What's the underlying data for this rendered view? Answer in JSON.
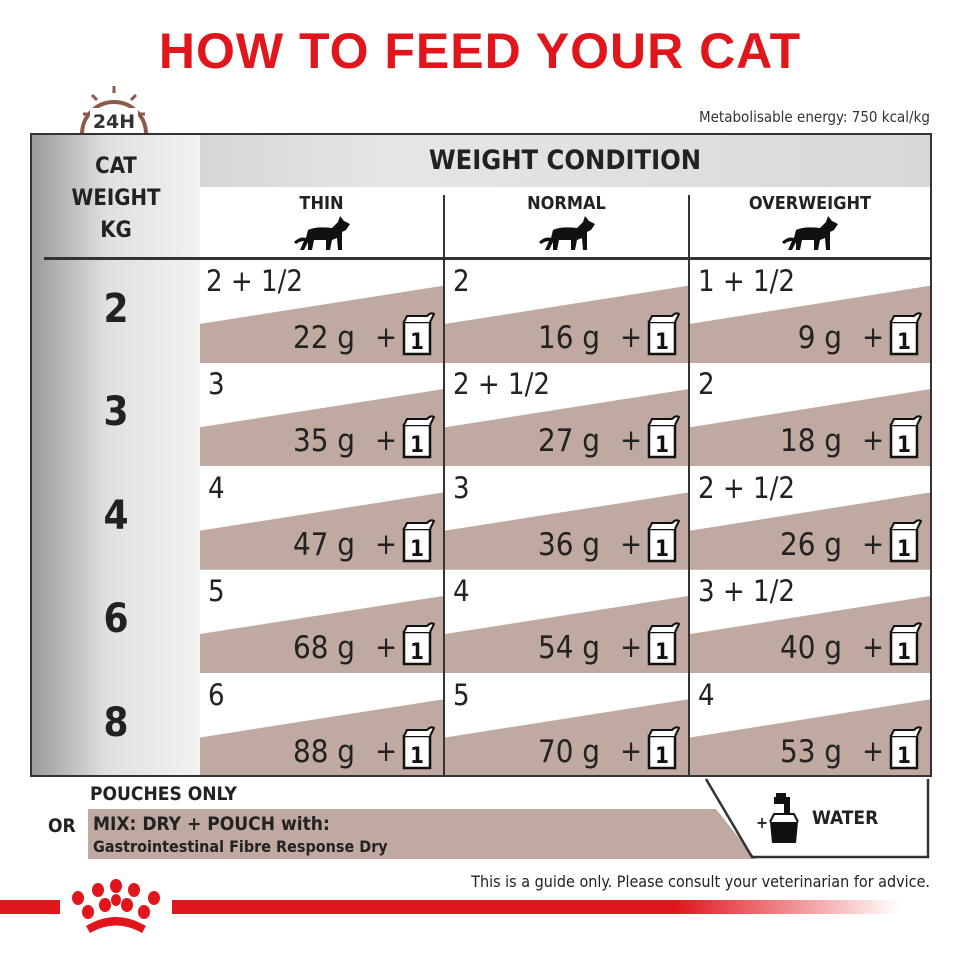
{
  "title": "HOW TO FEED YOUR CAT",
  "clock_label": "24H",
  "energy": "Metabolisable energy: 750 kcal/kg",
  "weight_header": [
    "CAT",
    "WEIGHT",
    "KG"
  ],
  "weight_condition": "WEIGHT CONDITION",
  "columns": [
    {
      "label": "THIN",
      "icon": "cat-thin-icon"
    },
    {
      "label": "NORMAL",
      "icon": "cat-normal-icon"
    },
    {
      "label": "OVERWEIGHT",
      "icon": "cat-overweight-icon"
    }
  ],
  "rows": [
    {
      "weight": "2",
      "cells": [
        {
          "pouches": "2 + 1/2",
          "grams": "22 g"
        },
        {
          "pouches": "2",
          "grams": "16 g"
        },
        {
          "pouches": "1 + 1/2",
          "grams": "9 g"
        }
      ]
    },
    {
      "weight": "3",
      "cells": [
        {
          "pouches": "3",
          "grams": "35 g"
        },
        {
          "pouches": "2 + 1/2",
          "grams": "27 g"
        },
        {
          "pouches": "2",
          "grams": "18 g"
        }
      ]
    },
    {
      "weight": "4",
      "cells": [
        {
          "pouches": "4",
          "grams": "47 g"
        },
        {
          "pouches": "3",
          "grams": "36 g"
        },
        {
          "pouches": "2 + 1/2",
          "grams": "26 g"
        }
      ]
    },
    {
      "weight": "6",
      "cells": [
        {
          "pouches": "5",
          "grams": "68 g"
        },
        {
          "pouches": "4",
          "grams": "54 g"
        },
        {
          "pouches": "3 + 1/2",
          "grams": "40 g"
        }
      ]
    },
    {
      "weight": "8",
      "cells": [
        {
          "pouches": "6",
          "grams": "88 g"
        },
        {
          "pouches": "5",
          "grams": "70 g"
        },
        {
          "pouches": "4",
          "grams": "53 g"
        }
      ]
    }
  ],
  "plus": "+",
  "pouch_count": "1",
  "pouches_only": "POUCHES ONLY",
  "or": "OR",
  "mix": "MIX: DRY + POUCH with:",
  "dry_product": "Gastrointestinal Fibre Response Dry",
  "water": "WATER",
  "water_plus": "+",
  "footer": "This is a guide only. Please consult your veterinarian for advice.",
  "colors": {
    "title": "#e0161c",
    "band": "#bfa9a1",
    "clock": "#8b5a4a"
  }
}
